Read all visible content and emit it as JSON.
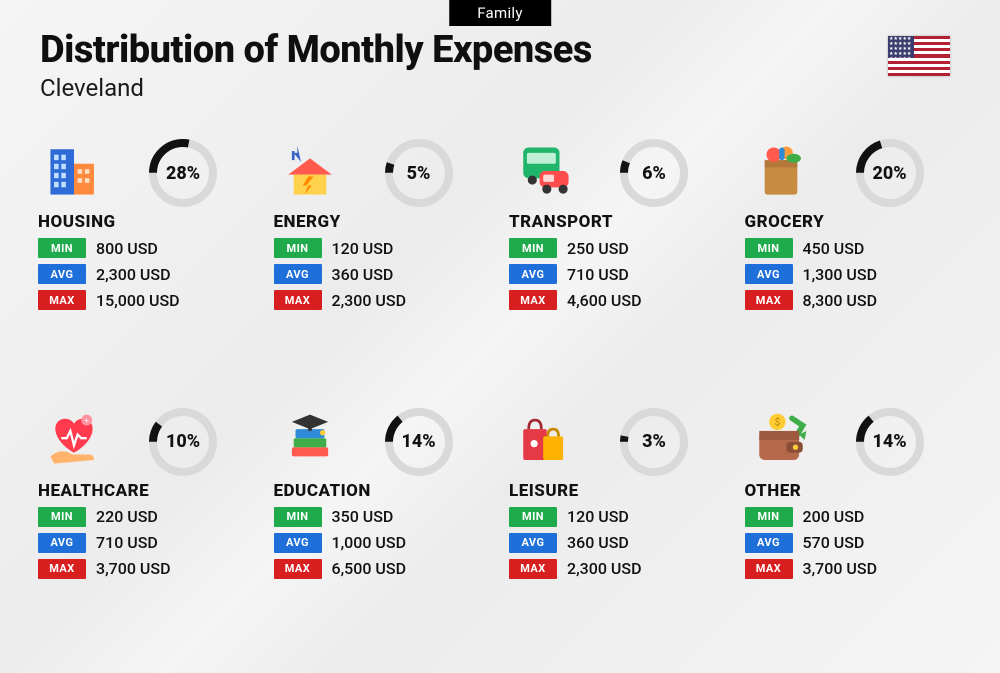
{
  "header": {
    "tab": "Family",
    "title": "Distribution of Monthly Expenses",
    "subtitle": "Cleveland"
  },
  "labels": {
    "min": "MIN",
    "avg": "AVG",
    "max": "MAX"
  },
  "colors": {
    "min": "#1fab4c",
    "avg": "#1e6fd9",
    "max": "#d81f1f",
    "donut_fg": "#111111",
    "donut_bg": "#d9d9d9"
  },
  "donut": {
    "radius": 30,
    "stroke": 8
  },
  "categories": [
    {
      "key": "housing",
      "name": "HOUSING",
      "percent": 28,
      "min": "800 USD",
      "avg": "2,300 USD",
      "max": "15,000 USD",
      "icon": "buildings"
    },
    {
      "key": "energy",
      "name": "ENERGY",
      "percent": 5,
      "min": "120 USD",
      "avg": "360 USD",
      "max": "2,300 USD",
      "icon": "energy-house"
    },
    {
      "key": "transport",
      "name": "TRANSPORT",
      "percent": 6,
      "min": "250 USD",
      "avg": "710 USD",
      "max": "4,600 USD",
      "icon": "bus-car"
    },
    {
      "key": "grocery",
      "name": "GROCERY",
      "percent": 20,
      "min": "450 USD",
      "avg": "1,300 USD",
      "max": "8,300 USD",
      "icon": "grocery-bag"
    },
    {
      "key": "healthcare",
      "name": "HEALTHCARE",
      "percent": 10,
      "min": "220 USD",
      "avg": "710 USD",
      "max": "3,700 USD",
      "icon": "heart-hand"
    },
    {
      "key": "education",
      "name": "EDUCATION",
      "percent": 14,
      "min": "350 USD",
      "avg": "1,000 USD",
      "max": "6,500 USD",
      "icon": "grad-books"
    },
    {
      "key": "leisure",
      "name": "LEISURE",
      "percent": 3,
      "min": "120 USD",
      "avg": "360 USD",
      "max": "2,300 USD",
      "icon": "shopping-bags"
    },
    {
      "key": "other",
      "name": "OTHER",
      "percent": 14,
      "min": "200 USD",
      "avg": "570 USD",
      "max": "3,700 USD",
      "icon": "wallet"
    }
  ]
}
